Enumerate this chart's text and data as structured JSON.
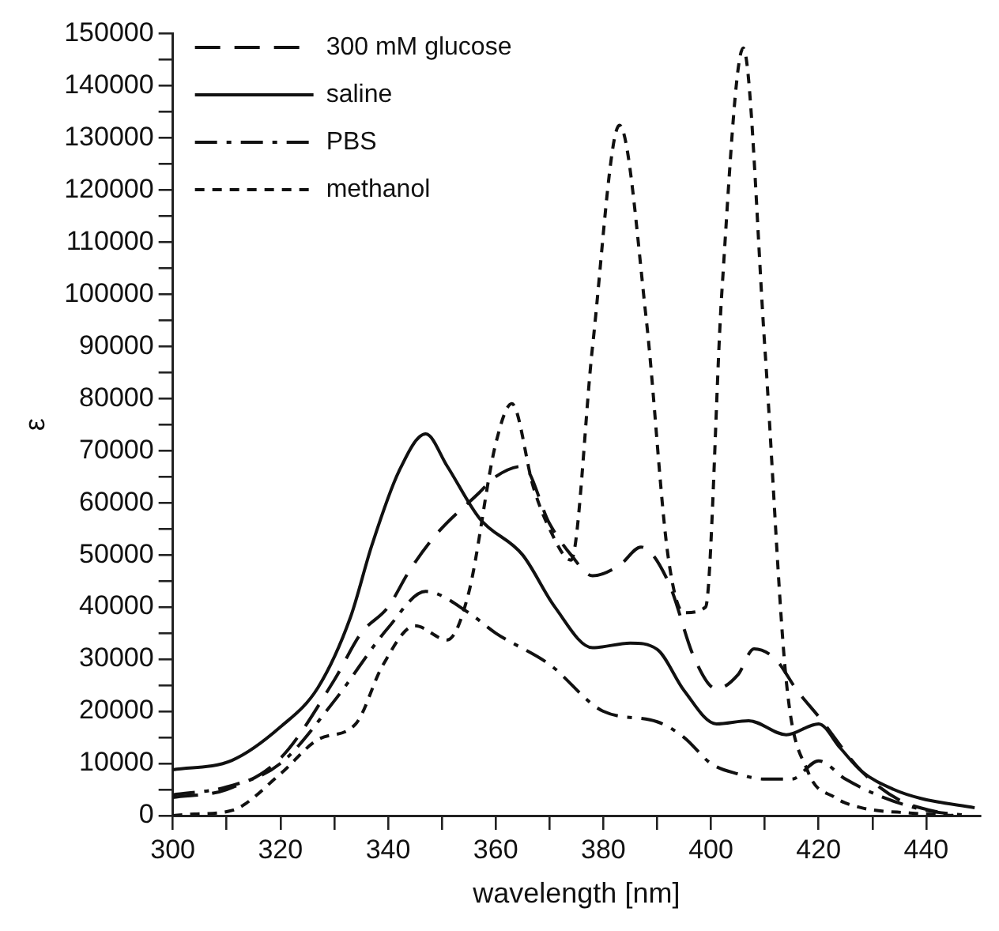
{
  "chart_data": {
    "type": "line",
    "xlabel": "wavelength [nm]",
    "ylabel": "ε",
    "xlim": [
      300,
      450
    ],
    "ylim": [
      0,
      150000
    ],
    "xticks": [
      300,
      {
        "value": 310,
        "label": null
      },
      320,
      {
        "value": 330,
        "label": null
      },
      340,
      {
        "value": 350,
        "label": null
      },
      360,
      {
        "value": 370,
        "label": null
      },
      380,
      {
        "value": 390,
        "label": null
      },
      400,
      {
        "value": 410,
        "label": null
      },
      420,
      {
        "value": 430,
        "label": null
      },
      440
    ],
    "yticks": [
      0,
      {
        "value": 5000,
        "label": null
      },
      10000,
      {
        "value": 15000,
        "label": null
      },
      20000,
      {
        "value": 25000,
        "label": null
      },
      30000,
      {
        "value": 35000,
        "label": null
      },
      40000,
      {
        "value": 45000,
        "label": null
      },
      50000,
      {
        "value": 55000,
        "label": null
      },
      60000,
      {
        "value": 65000,
        "label": null
      },
      70000,
      {
        "value": 75000,
        "label": null
      },
      80000,
      {
        "value": 85000,
        "label": null
      },
      90000,
      {
        "value": 95000,
        "label": null
      },
      100000,
      {
        "value": 105000,
        "label": null
      },
      110000,
      {
        "value": 115000,
        "label": null
      },
      120000,
      {
        "value": 125000,
        "label": null
      },
      130000,
      {
        "value": 135000,
        "label": null
      },
      140000,
      {
        "value": 145000,
        "label": null
      },
      150000
    ],
    "grid": false,
    "legend": "top left",
    "marker": "none",
    "series": [
      {
        "name": "300 mM glucose",
        "color": "#111111",
        "line_style": "dashed",
        "x": [
          300,
          310,
          320,
          330,
          335,
          340,
          344,
          349,
          357,
          360,
          365,
          370,
          374,
          378,
          383,
          387,
          392,
          397,
          401,
          405,
          408,
          412,
          416,
          420,
          428,
          435,
          445
        ],
        "values": [
          3500,
          5000,
          11000,
          26000,
          35000,
          40000,
          47000,
          54000,
          62000,
          65000,
          67000,
          56000,
          50000,
          46000,
          48000,
          51500,
          45000,
          30000,
          24300,
          27000,
          32000,
          30000,
          24000,
          19000,
          8500,
          3000,
          0
        ]
      },
      {
        "name": "saline",
        "color": "#111111",
        "line_style": "solid",
        "x": [
          300,
          311,
          320,
          327,
          333,
          337,
          342,
          347,
          351,
          357,
          365,
          371,
          378,
          385,
          390,
          395,
          401,
          407,
          414,
          420,
          424,
          428,
          434,
          439,
          449
        ],
        "values": [
          8800,
          10600,
          17000,
          24600,
          38000,
          51900,
          66000,
          73200,
          67000,
          57000,
          50000,
          40000,
          32200,
          33100,
          31900,
          24000,
          17600,
          18200,
          15500,
          17600,
          13000,
          8500,
          5000,
          3300,
          1500
        ]
      },
      {
        "name": "PBS",
        "color": "#111111",
        "line_style": "dashdot",
        "x": [
          300,
          310,
          320,
          330,
          340,
          347,
          355,
          360,
          370,
          380,
          390,
          395,
          400,
          405,
          410,
          415,
          420,
          425,
          432,
          440,
          448
        ],
        "values": [
          4000,
          5500,
          10000,
          22000,
          36000,
          43000,
          38900,
          35000,
          29000,
          20000,
          18000,
          15000,
          10000,
          8000,
          7000,
          7000,
          10500,
          7000,
          3500,
          1000,
          0
        ]
      },
      {
        "name": "methanol",
        "color": "#111111",
        "line_style": "dotted",
        "x": [
          300,
          304,
          311,
          320,
          327,
          334,
          339,
          345,
          351,
          355,
          360,
          363,
          367,
          370,
          374,
          378,
          383,
          388,
          392,
          395,
          399,
          402,
          406,
          410,
          414,
          418,
          423,
          428,
          437,
          445
        ],
        "values": [
          0,
          300,
          1000,
          8000,
          14600,
          17600,
          28800,
          36400,
          33700,
          42800,
          71300,
          79000,
          63000,
          55000,
          49000,
          90000,
          132400,
          95000,
          50000,
          38900,
          40000,
          100000,
          147200,
          90000,
          25800,
          8500,
          3500,
          1500,
          500,
          0
        ]
      }
    ]
  }
}
